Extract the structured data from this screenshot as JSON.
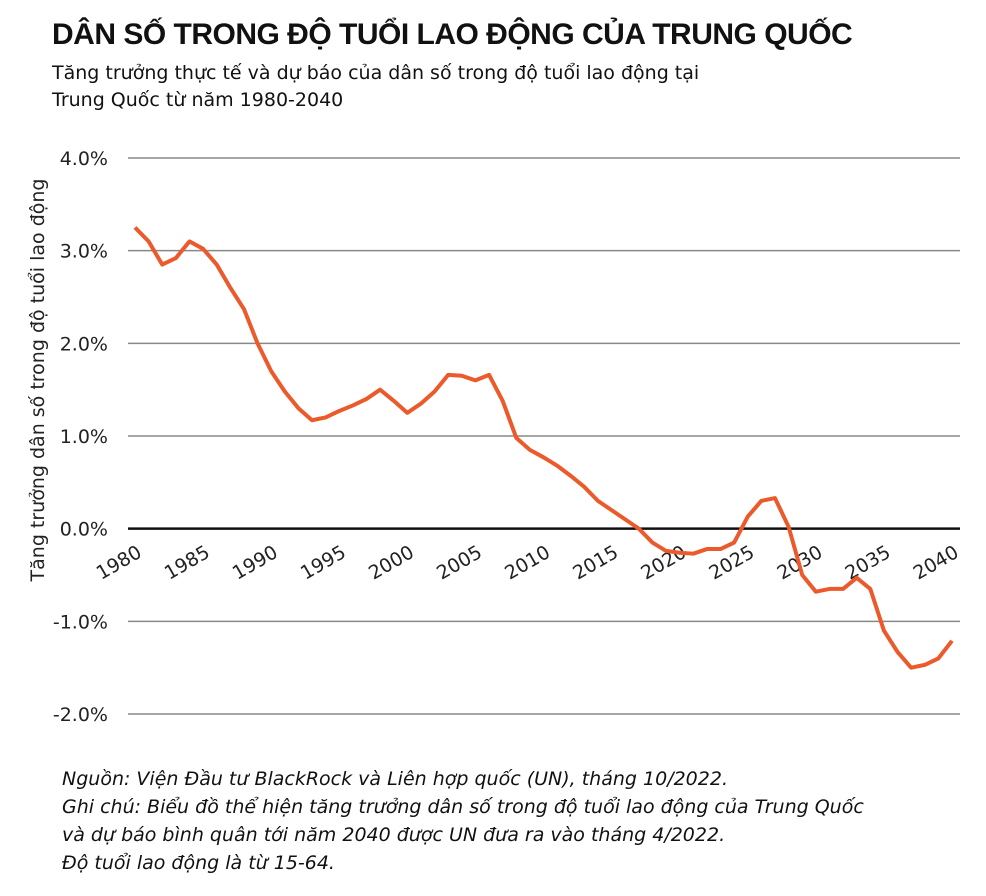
{
  "chart_data": {
    "type": "line",
    "title": "DÂN SỐ TRONG ĐỘ TUỔI LAO ĐỘNG CỦA TRUNG QUỐC",
    "subtitle": "Tăng trưởng thực tế và dự báo của dân số trong độ tuổi lao động tại Trung Quốc từ năm 1980-2040",
    "y_label": "Tăng trưởng dân số trong độ tuổi lao động",
    "notes": [
      "Nguồn: Viện Đầu tư BlackRock và Liên hợp quốc (UN), tháng 10/2022.",
      "Ghi chú: Biểu đồ thể hiện tăng trưởng dân số trong độ tuổi lao động của Trung Quốc",
      "và dự báo bình quân tới năm 2040 được UN đưa ra vào tháng 4/2022.",
      "Độ tuổi lao động là từ 15-64."
    ],
    "x": [
      1980,
      1981,
      1982,
      1983,
      1984,
      1985,
      1986,
      1987,
      1988,
      1989,
      1990,
      1991,
      1992,
      1993,
      1994,
      1995,
      1996,
      1997,
      1998,
      1999,
      2000,
      2001,
      2002,
      2003,
      2004,
      2005,
      2006,
      2007,
      2008,
      2009,
      2010,
      2011,
      2012,
      2013,
      2014,
      2015,
      2016,
      2017,
      2018,
      2019,
      2020,
      2021,
      2022,
      2023,
      2024,
      2025,
      2026,
      2027,
      2028,
      2029,
      2030,
      2031,
      2032,
      2033,
      2034,
      2035,
      2036,
      2037,
      2038,
      2039,
      2040
    ],
    "series": [
      {
        "color": "#ec5a2b",
        "values": [
          3.25,
          3.1,
          2.85,
          2.92,
          3.1,
          3.02,
          2.85,
          2.6,
          2.37,
          2.0,
          1.7,
          1.48,
          1.3,
          1.17,
          1.2,
          1.27,
          1.33,
          1.4,
          1.5,
          1.38,
          1.25,
          1.35,
          1.48,
          1.66,
          1.65,
          1.6,
          1.66,
          1.38,
          0.98,
          0.85,
          0.77,
          0.68,
          0.57,
          0.45,
          0.3,
          0.2,
          0.1,
          0.0,
          -0.15,
          -0.24,
          -0.26,
          -0.27,
          -0.22,
          -0.22,
          -0.15,
          0.13,
          0.3,
          0.33,
          0.02,
          -0.5,
          -0.68,
          -0.65,
          -0.65,
          -0.53,
          -0.65,
          -1.1,
          -1.33,
          -1.5,
          -1.47,
          -1.4,
          -1.21
        ]
      }
    ],
    "xlim": [
      1980,
      2040
    ],
    "xticks": [
      1980,
      1985,
      1990,
      1995,
      2000,
      2005,
      2010,
      2015,
      2020,
      2025,
      2030,
      2035,
      2040
    ],
    "ylim": [
      -2,
      4
    ],
    "yticks": [
      {
        "value": -2,
        "label": "-2.0%"
      },
      {
        "value": -1,
        "label": "-1.0%"
      },
      {
        "value": 0,
        "label": "0.0%"
      },
      {
        "value": 1,
        "label": "1.0%"
      },
      {
        "value": 2,
        "label": "2.0%"
      },
      {
        "value": 3,
        "label": "3.0%"
      },
      {
        "value": 4,
        "label": "4.0%"
      }
    ],
    "grid": true
  }
}
